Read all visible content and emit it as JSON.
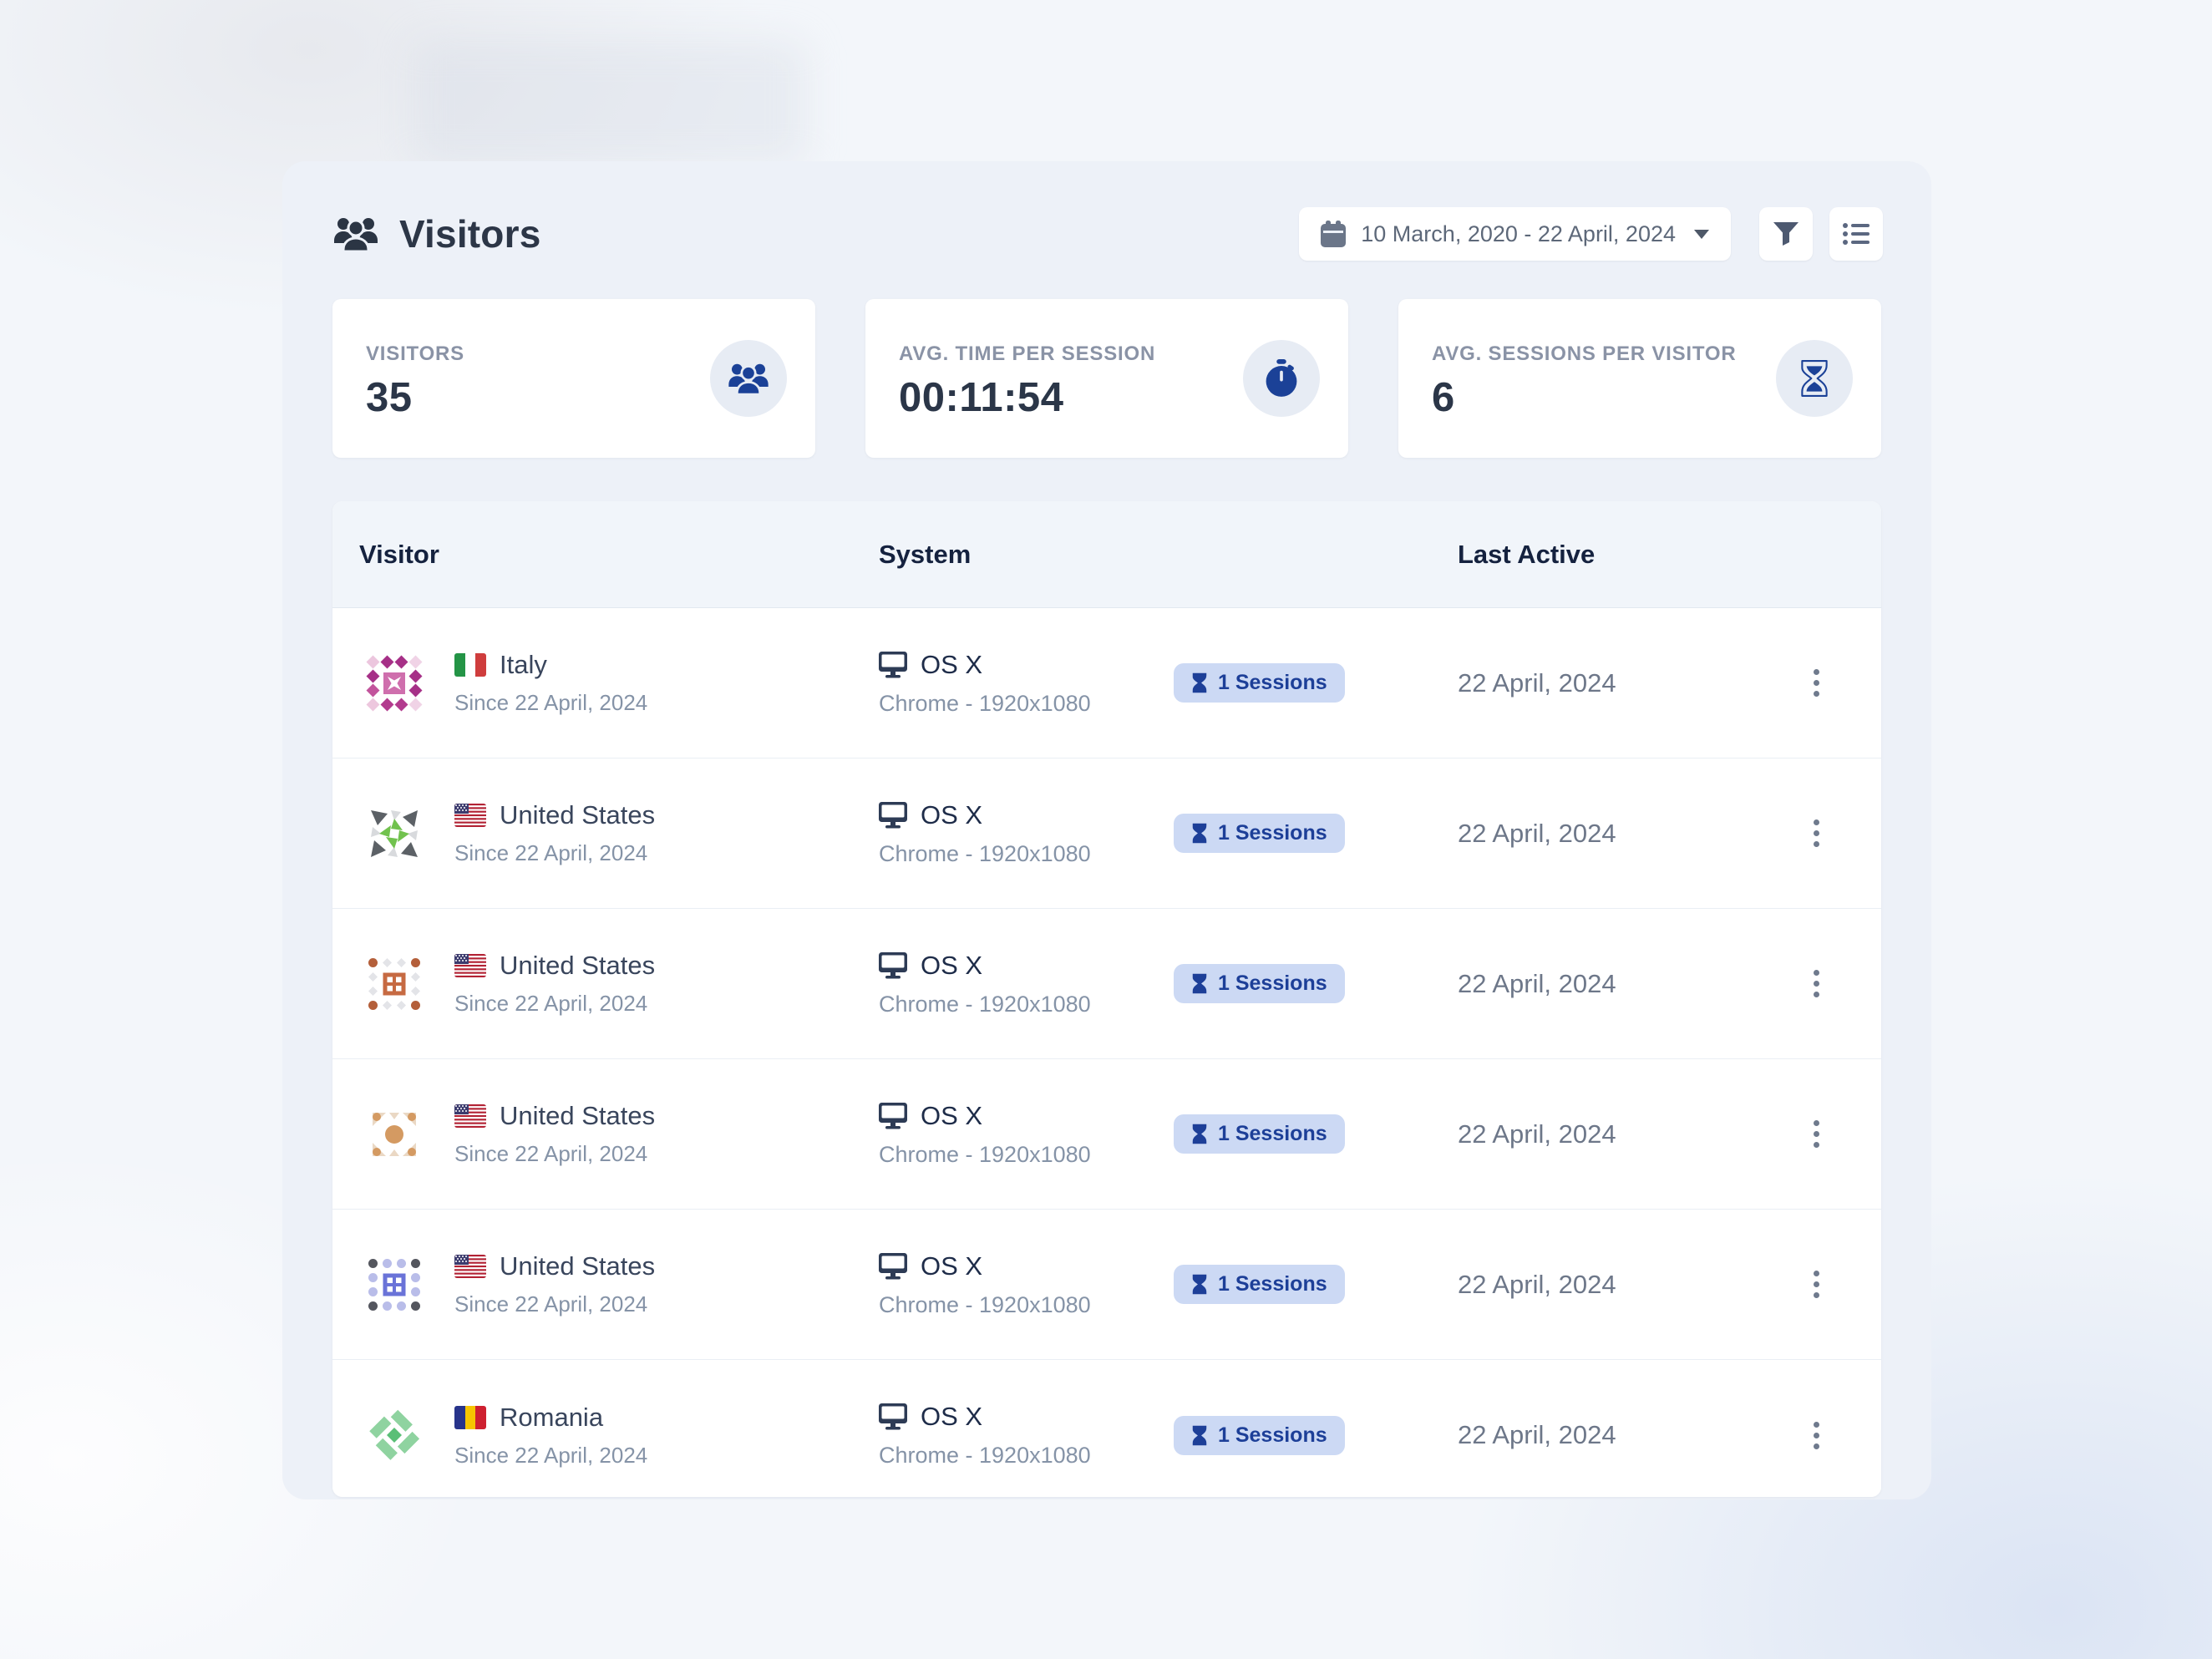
{
  "header": {
    "title": "Visitors",
    "date_range": "10 March, 2020 - 22 April, 2024"
  },
  "stats": [
    {
      "label": "VISITORS",
      "value": "35",
      "icon": "users-icon"
    },
    {
      "label": "AVG. TIME PER SESSION",
      "value": "00:11:54",
      "icon": "stopwatch-icon"
    },
    {
      "label": "AVG. SESSIONS PER VISITOR",
      "value": "6",
      "icon": "hourglass-icon"
    }
  ],
  "table": {
    "columns": [
      "Visitor",
      "System",
      "Last Active"
    ],
    "rows": [
      {
        "country": "Italy",
        "flag": "it",
        "since": "Since 22 April, 2024",
        "os": "OS X",
        "browser": "Chrome - 1920x1080",
        "sessions": "1 Sessions",
        "last_active": "22 April, 2024",
        "avatar": "pink-diamond-identicon"
      },
      {
        "country": "United States",
        "flag": "us",
        "since": "Since 22 April, 2024",
        "os": "OS X",
        "browser": "Chrome - 1920x1080",
        "sessions": "1 Sessions",
        "last_active": "22 April, 2024",
        "avatar": "gray-green-pinwheel-identicon"
      },
      {
        "country": "United States",
        "flag": "us",
        "since": "Since 22 April, 2024",
        "os": "OS X",
        "browser": "Chrome - 1920x1080",
        "sessions": "1 Sessions",
        "last_active": "22 April, 2024",
        "avatar": "orange-window-identicon"
      },
      {
        "country": "United States",
        "flag": "us",
        "since": "Since 22 April, 2024",
        "os": "OS X",
        "browser": "Chrome - 1920x1080",
        "sessions": "1 Sessions",
        "last_active": "22 April, 2024",
        "avatar": "tan-orbit-identicon"
      },
      {
        "country": "United States",
        "flag": "us",
        "since": "Since 22 April, 2024",
        "os": "OS X",
        "browser": "Chrome - 1920x1080",
        "sessions": "1 Sessions",
        "last_active": "22 April, 2024",
        "avatar": "indigo-window-identicon"
      },
      {
        "country": "Romania",
        "flag": "ro",
        "since": "Since 22 April, 2024",
        "os": "OS X",
        "browser": "Chrome - 1920x1080",
        "sessions": "1 Sessions",
        "last_active": "22 April, 2024",
        "avatar": "green-cross-identicon"
      }
    ]
  },
  "colors": {
    "accent_blue": "#1b4197",
    "badge_bg": "#ccd9f4",
    "badge_text": "#1d3f98",
    "panel_bg": "#edf1f8"
  }
}
